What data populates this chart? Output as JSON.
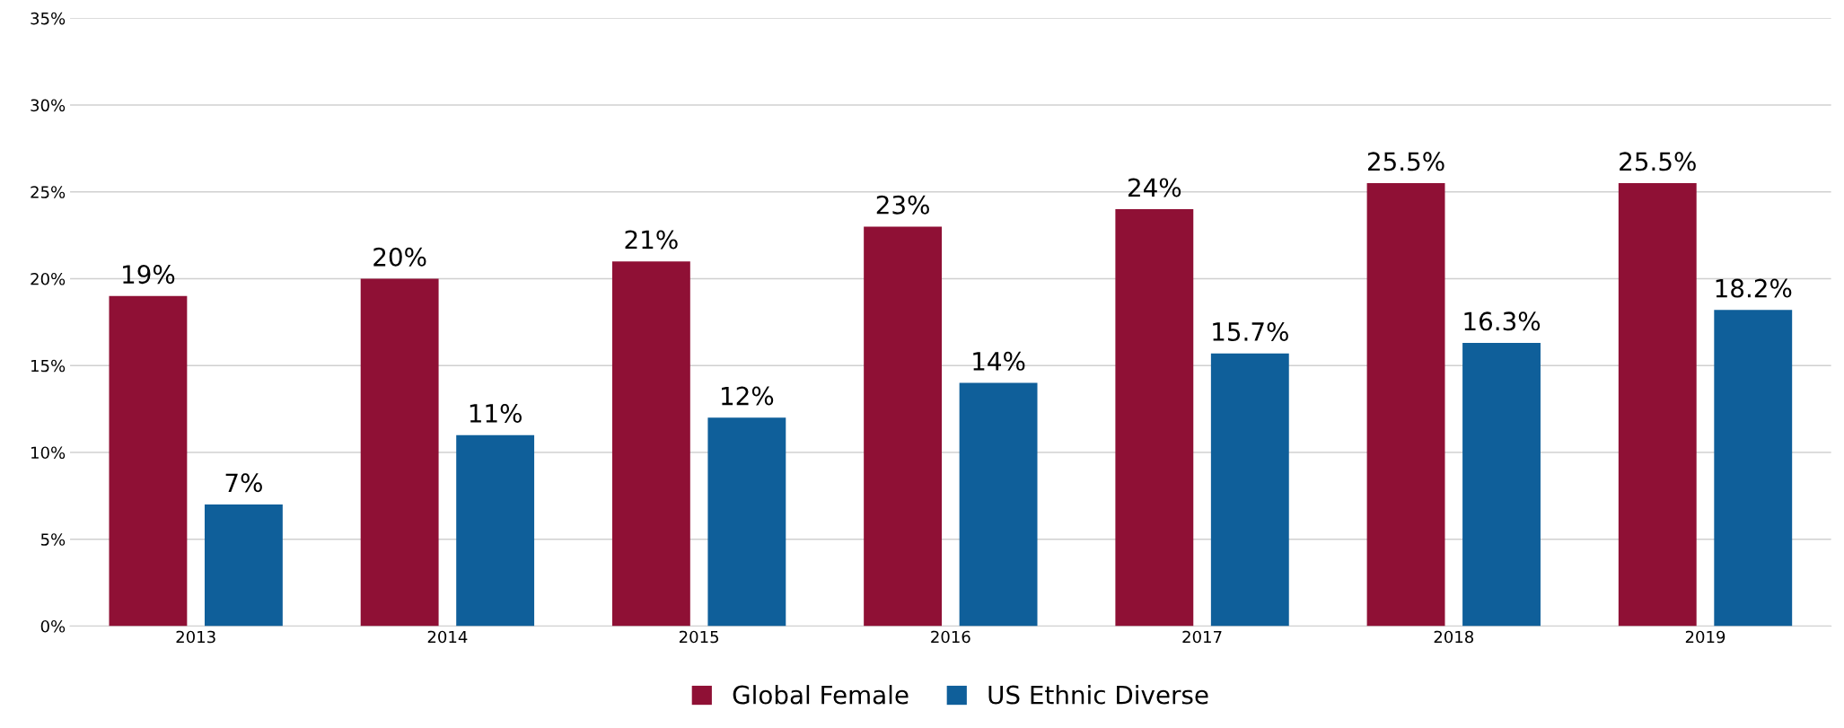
{
  "chart_data": {
    "type": "bar",
    "categories": [
      "2013",
      "2014",
      "2015",
      "2016",
      "2017",
      "2018",
      "2019"
    ],
    "series": [
      {
        "name": "Global Female",
        "color": "#8f1035",
        "values": [
          19,
          20,
          21,
          23,
          24,
          25.5,
          25.5
        ],
        "value_labels": [
          "19%",
          "20%",
          "21%",
          "23%",
          "24%",
          "25.5%",
          "25.5%"
        ]
      },
      {
        "name": "US Ethnic Diverse",
        "color": "#0f5f9a",
        "values": [
          7,
          11,
          12,
          14,
          15.7,
          16.3,
          18.2
        ],
        "value_labels": [
          "7%",
          "11%",
          "12%",
          "14%",
          "15.7%",
          "16.3%",
          "18.2%"
        ]
      }
    ],
    "ylim": [
      0,
      35
    ],
    "yticks": [
      {
        "value": 0,
        "label": "0%"
      },
      {
        "value": 5,
        "label": "5%"
      },
      {
        "value": 10,
        "label": "10%"
      },
      {
        "value": 15,
        "label": "15%"
      },
      {
        "value": 20,
        "label": "20%"
      },
      {
        "value": 25,
        "label": "25%"
      },
      {
        "value": 30,
        "label": "30%"
      },
      {
        "value": 35,
        "label": "35%"
      }
    ],
    "grid": "y",
    "legend": "bottom"
  }
}
